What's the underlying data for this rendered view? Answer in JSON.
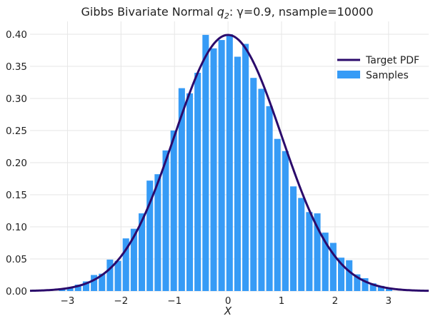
{
  "chart_data": {
    "type": "bar",
    "title_prefix": "Gibbs Bivariate Normal ",
    "title_var": "q",
    "title_sub": "2",
    "title_suffix": ": γ=0.9, nsample=10000",
    "xlabel": "X",
    "ylabel": "",
    "xlim": [
      -3.7,
      3.75
    ],
    "ylim": [
      0,
      0.42
    ],
    "xticks": [
      -3,
      -2,
      -1,
      0,
      1,
      2,
      3
    ],
    "xtick_labels": [
      "−3",
      "−2",
      "−1",
      "0",
      "1",
      "2",
      "3"
    ],
    "yticks": [
      0.0,
      0.05,
      0.1,
      0.15,
      0.2,
      0.25,
      0.3,
      0.35,
      0.4
    ],
    "ytick_labels": [
      "0.00",
      "0.05",
      "0.10",
      "0.15",
      "0.20",
      "0.25",
      "0.30",
      "0.35",
      "0.40"
    ],
    "grid": true,
    "legend_position": "top-right",
    "legend": [
      "Target PDF",
      "Samples"
    ],
    "series": [
      {
        "name": "Samples",
        "kind": "histogram",
        "color": "#369bf6",
        "bin_width": 0.1475,
        "bin_centers": [
          -3.1,
          -2.951,
          -2.802,
          -2.653,
          -2.504,
          -2.355,
          -2.206,
          -2.057,
          -1.908,
          -1.759,
          -1.61,
          -1.461,
          -1.312,
          -1.163,
          -1.014,
          -0.865,
          -0.716,
          -0.567,
          -0.418,
          -0.269,
          -0.12,
          0.029,
          0.178,
          0.327,
          0.476,
          0.625,
          0.774,
          0.923,
          1.072,
          1.221,
          1.37,
          1.519,
          1.668,
          1.817,
          1.966,
          2.115,
          2.264,
          2.413,
          2.562,
          2.711,
          2.86,
          3.009
        ],
        "values": [
          0.003,
          0.006,
          0.01,
          0.015,
          0.025,
          0.027,
          0.049,
          0.047,
          0.082,
          0.097,
          0.121,
          0.172,
          0.182,
          0.219,
          0.25,
          0.316,
          0.308,
          0.34,
          0.399,
          0.378,
          0.391,
          0.4,
          0.365,
          0.385,
          0.332,
          0.315,
          0.288,
          0.237,
          0.218,
          0.163,
          0.145,
          0.123,
          0.121,
          0.091,
          0.075,
          0.052,
          0.048,
          0.026,
          0.02,
          0.012,
          0.008,
          0.004
        ]
      },
      {
        "name": "Target PDF",
        "kind": "line",
        "color": "#2b0a6b",
        "function": "standard normal pdf",
        "mean": 0,
        "std": 1
      }
    ]
  }
}
